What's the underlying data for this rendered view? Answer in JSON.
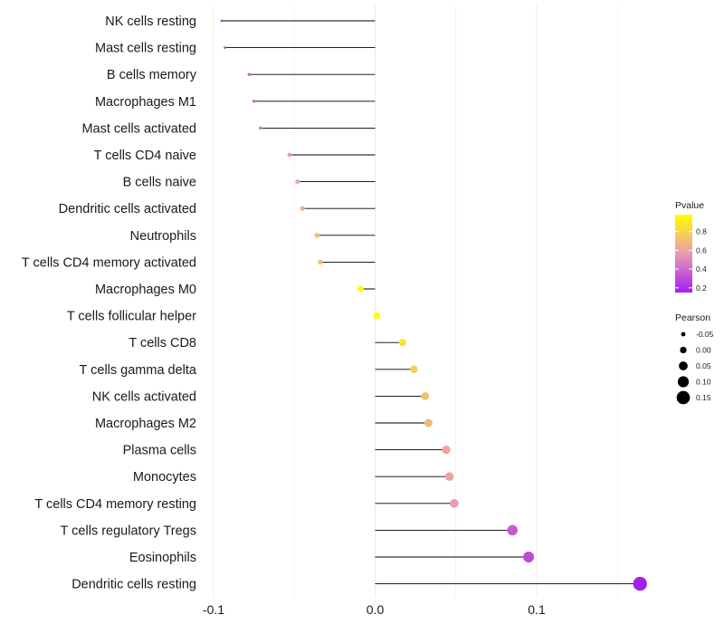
{
  "chart_data": {
    "type": "lollipop",
    "title": "",
    "xlabel": "",
    "ylabel": "",
    "xlim": [
      -0.1,
      0.165
    ],
    "xticks": [
      -0.1,
      0.0,
      0.1
    ],
    "xtick_labels": [
      "-0.1",
      "0.0",
      "0.1"
    ],
    "grid": true,
    "colors": {
      "low": "#a020f0",
      "mid": "#eb9ab2",
      "high": "#ffff00",
      "stem": "#000000",
      "grid": "#ebebeb"
    },
    "categories": [
      "NK cells resting",
      "Mast cells resting",
      "B cells memory",
      "Macrophages M1",
      "Mast cells activated",
      "T cells CD4 naive",
      "B cells naive",
      "Dendritic cells activated",
      "Neutrophils",
      "T cells CD4 memory activated",
      "Macrophages M0",
      "T cells follicular helper",
      "T cells CD8",
      "T cells gamma delta",
      "NK cells activated",
      "Macrophages M2",
      "Plasma cells",
      "Monocytes",
      "T cells CD4 memory resting",
      "T cells regulatory  Tregs ",
      "Eosinophils",
      "Dendritic cells resting"
    ],
    "pearson": [
      -0.095,
      -0.093,
      -0.078,
      -0.075,
      -0.071,
      -0.053,
      -0.048,
      -0.045,
      -0.036,
      -0.034,
      -0.009,
      0.001,
      0.017,
      0.024,
      0.031,
      0.033,
      0.044,
      0.046,
      0.049,
      0.085,
      0.095,
      0.164
    ],
    "pvalue": [
      0.25,
      0.3,
      0.38,
      0.42,
      0.48,
      0.58,
      0.62,
      0.65,
      0.72,
      0.74,
      0.95,
      0.97,
      0.86,
      0.78,
      0.72,
      0.7,
      0.62,
      0.6,
      0.56,
      0.35,
      0.3,
      0.12
    ],
    "legend": {
      "position": "right",
      "color_title": "Pvalue",
      "color_ticks": [
        "0.8",
        "0.6",
        "0.4",
        "0.2"
      ],
      "color_tick_values": [
        0.8,
        0.6,
        0.4,
        0.2
      ],
      "color_range": [
        0.15,
        0.98
      ],
      "size_title": "Pearson",
      "size_labels": [
        "-0.05",
        "0.00",
        "0.05",
        "0.10",
        "0.15"
      ],
      "size_values": [
        -0.05,
        0.0,
        0.05,
        0.1,
        0.15
      ]
    }
  }
}
